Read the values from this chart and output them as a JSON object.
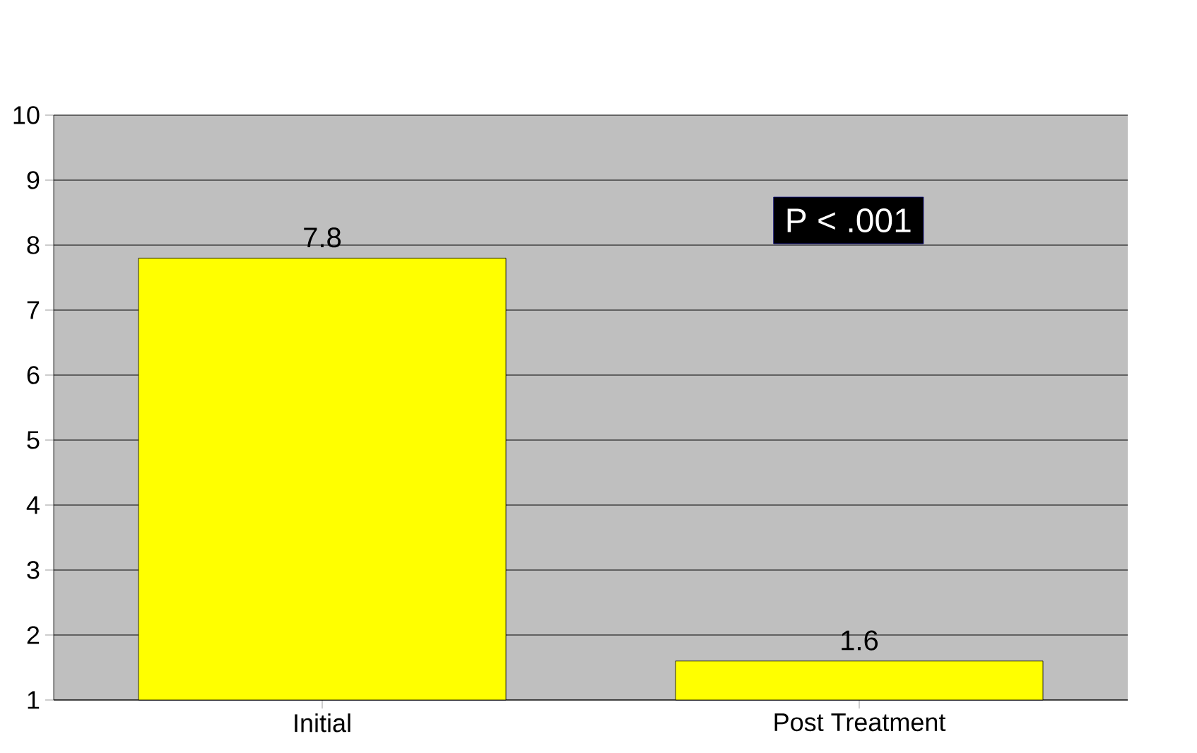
{
  "chart_data": {
    "type": "bar",
    "categories": [
      "Initial",
      "Post Treatment"
    ],
    "values": [
      7.8,
      1.6
    ],
    "value_labels": [
      "7.8",
      "1.6"
    ],
    "color": "#ffff00",
    "ylim": [
      1,
      10
    ],
    "yticks": [
      1,
      2,
      3,
      4,
      5,
      6,
      7,
      8,
      9,
      10
    ],
    "grid": "y",
    "annotations": [
      "P < .001"
    ]
  }
}
